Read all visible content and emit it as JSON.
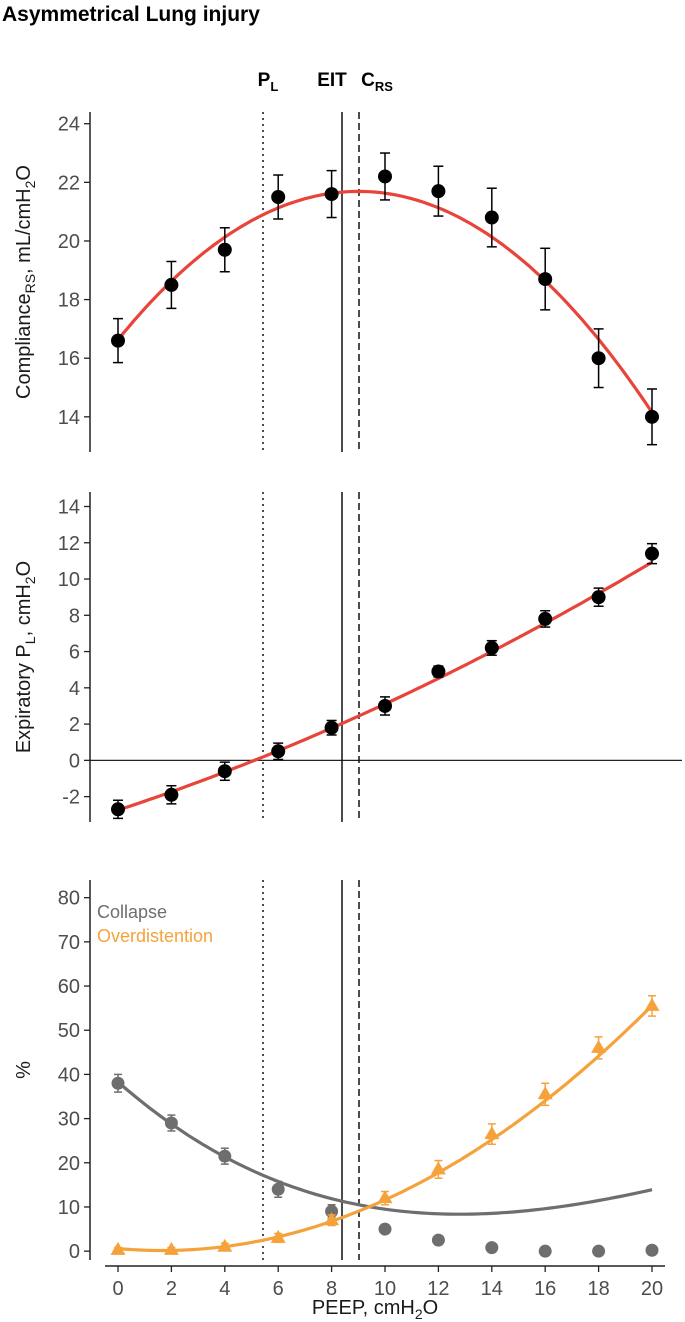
{
  "title": "Asymmetrical Lung injury",
  "markers": [
    {
      "name": "PL",
      "main": "P",
      "sub": "L",
      "x": 5.5,
      "style": "dotted"
    },
    {
      "name": "EIT",
      "main": "EIT",
      "sub": "",
      "x": 8.4,
      "style": "solid"
    },
    {
      "name": "CRS",
      "main": "C",
      "sub": "RS",
      "x": 9.0,
      "style": "dashed"
    }
  ],
  "colors": {
    "fit": "#e8443a",
    "points": "#000000",
    "collapse": "#6e6e6e",
    "overdistention": "#f5a23b"
  },
  "x_axis": {
    "label_main": "PEEP, cmH",
    "label_sub": "2",
    "label_tail": "O",
    "ticks": [
      "0",
      "2",
      "4",
      "6",
      "8",
      "10",
      "12",
      "14",
      "16",
      "18",
      "20"
    ]
  },
  "chart_data": [
    {
      "type": "scatter",
      "id": "compliance",
      "ylabel": {
        "p1": "Compliance",
        "s1": "RS",
        "p2": ", mL/cmH",
        "s2": "2",
        "p3": "O"
      },
      "ylim": [
        12.8,
        24.4
      ],
      "yticks": [
        "14",
        "16",
        "18",
        "20",
        "22",
        "24"
      ],
      "x": [
        0,
        2,
        4,
        6,
        8,
        10,
        12,
        14,
        16,
        18,
        20
      ],
      "y": [
        16.6,
        18.5,
        19.7,
        21.5,
        21.6,
        22.2,
        21.7,
        20.8,
        18.7,
        16.0,
        14.0
      ],
      "err": [
        0.75,
        0.8,
        0.75,
        0.75,
        0.8,
        0.8,
        0.85,
        1.0,
        1.05,
        1.0,
        0.95
      ],
      "fit": {
        "name": "quadratic fit",
        "coefficients": [
          16.63,
          1.124,
          -0.0624
        ]
      }
    },
    {
      "type": "scatter",
      "id": "expiratory-pl",
      "ylabel": {
        "p1": "Expiratory P",
        "s1": "L",
        "p2": ", cmH",
        "s2": "2",
        "p3": "O"
      },
      "ylim": [
        -3.4,
        14.8
      ],
      "yticks": [
        "-2",
        "0",
        "2",
        "4",
        "6",
        "8",
        "10",
        "12",
        "14"
      ],
      "zero_line": 0,
      "x": [
        0,
        2,
        4,
        6,
        8,
        10,
        12,
        14,
        16,
        18,
        20
      ],
      "y": [
        -2.7,
        -1.9,
        -0.6,
        0.5,
        1.8,
        3.0,
        4.9,
        6.2,
        7.8,
        9.0,
        11.4
      ],
      "err": [
        0.5,
        0.5,
        0.5,
        0.45,
        0.4,
        0.5,
        0.3,
        0.4,
        0.45,
        0.5,
        0.55
      ],
      "fit": {
        "name": "quadratic fit",
        "coefficients": [
          -2.75,
          0.488,
          0.0098
        ]
      }
    },
    {
      "type": "line",
      "id": "percent",
      "ylabel": {
        "p1": "%",
        "s1": "",
        "p2": "",
        "s2": "",
        "p3": ""
      },
      "ylim": [
        -2,
        84
      ],
      "yticks": [
        "0",
        "10",
        "20",
        "30",
        "40",
        "50",
        "60",
        "70",
        "80"
      ],
      "legend_position": "top-left",
      "series": [
        {
          "name": "Collapse",
          "marker": "circle",
          "color": "#6e6e6e",
          "x": [
            0,
            2,
            4,
            6,
            8,
            10,
            12,
            14,
            16,
            18,
            20
          ],
          "values": [
            38,
            29,
            21.5,
            14,
            9,
            5,
            2.5,
            0.8,
            0,
            0,
            0.2
          ],
          "err": [
            2,
            1.8,
            1.8,
            1.8,
            1.5,
            1,
            0.8,
            0.6,
            0.5,
            0.5,
            0.5
          ],
          "fit_coefficients": [
            38.3,
            -5.3,
            0.28,
            -0.0038
          ]
        },
        {
          "name": "Overdistention",
          "marker": "triangle",
          "color": "#f5a23b",
          "x": [
            0,
            2,
            4,
            6,
            8,
            10,
            12,
            14,
            16,
            18,
            20
          ],
          "values": [
            0.3,
            0.3,
            1,
            3,
            7,
            12,
            18.5,
            26.5,
            35.5,
            46,
            55.5
          ],
          "err": [
            0.5,
            0.5,
            0.8,
            1,
            1.2,
            1.5,
            2,
            2.3,
            2.5,
            2.5,
            2.3
          ],
          "fit_coefficients": [
            0.6,
            -0.55,
            0.165
          ]
        }
      ]
    }
  ]
}
